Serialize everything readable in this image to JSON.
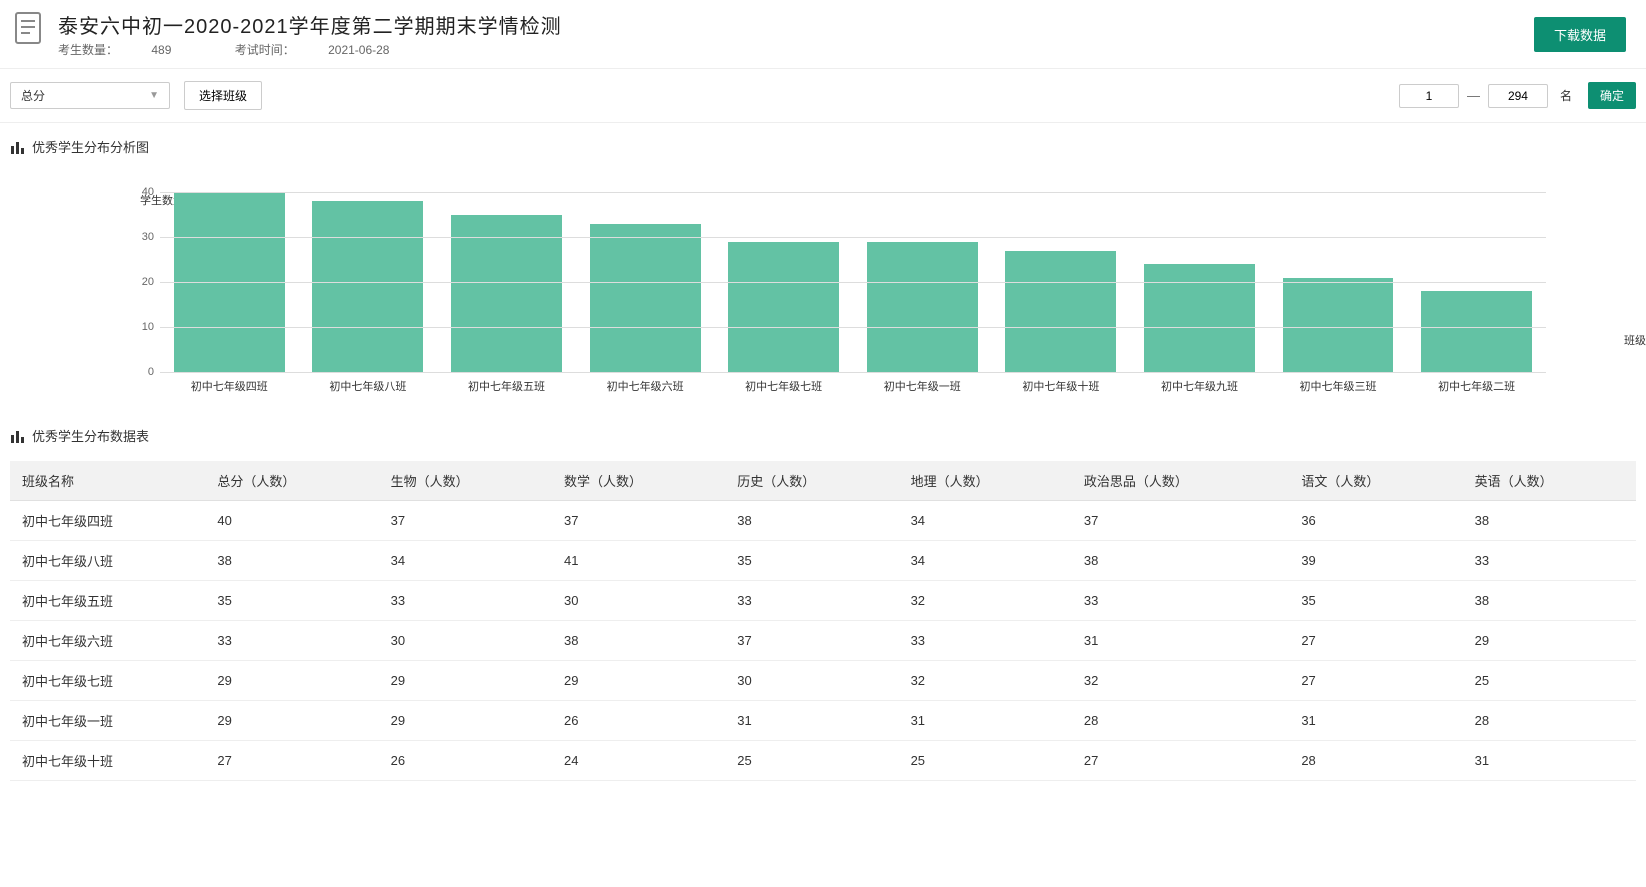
{
  "header": {
    "title": "泰安六中初一2020-2021学年度第二学期期末学情检测",
    "student_count_label": "考生数量：",
    "student_count": "489",
    "exam_time_label": "考试时间：",
    "exam_time": "2021-06-28",
    "download_label": "下载数据"
  },
  "filter": {
    "select_value": "总分",
    "class_btn_label": "选择班级",
    "from": "1",
    "to": "294",
    "unit": "名",
    "confirm": "确定"
  },
  "chart_section_title": "优秀学生分布分析图",
  "table_section_title": "优秀学生分布数据表",
  "chart": {
    "type": "bar",
    "y_axis_label": "学生数量",
    "x_axis_label": "班级",
    "ylim": [
      0,
      40
    ],
    "ytick_step": 10,
    "bar_color": "#63c2a4",
    "grid_color": "#dddddd",
    "background_color": "#ffffff",
    "label_fontsize": 11,
    "categories": [
      "初中七年级四班",
      "初中七年级八班",
      "初中七年级五班",
      "初中七年级六班",
      "初中七年级七班",
      "初中七年级一班",
      "初中七年级十班",
      "初中七年级九班",
      "初中七年级三班",
      "初中七年级二班"
    ],
    "values": [
      40,
      38,
      35,
      33,
      29,
      29,
      27,
      24,
      21,
      18
    ]
  },
  "table": {
    "columns": [
      "班级名称",
      "总分（人数）",
      "生物（人数）",
      "数学（人数）",
      "历史（人数）",
      "地理（人数）",
      "政治思品（人数）",
      "语文（人数）",
      "英语（人数）"
    ],
    "rows": [
      [
        "初中七年级四班",
        "40",
        "37",
        "37",
        "38",
        "34",
        "37",
        "36",
        "38"
      ],
      [
        "初中七年级八班",
        "38",
        "34",
        "41",
        "35",
        "34",
        "38",
        "39",
        "33"
      ],
      [
        "初中七年级五班",
        "35",
        "33",
        "30",
        "33",
        "32",
        "33",
        "35",
        "38"
      ],
      [
        "初中七年级六班",
        "33",
        "30",
        "38",
        "37",
        "33",
        "31",
        "27",
        "29"
      ],
      [
        "初中七年级七班",
        "29",
        "29",
        "29",
        "30",
        "32",
        "32",
        "27",
        "25"
      ],
      [
        "初中七年级一班",
        "29",
        "29",
        "26",
        "31",
        "31",
        "28",
        "31",
        "28"
      ],
      [
        "初中七年级十班",
        "27",
        "26",
        "24",
        "25",
        "25",
        "27",
        "28",
        "31"
      ]
    ]
  }
}
